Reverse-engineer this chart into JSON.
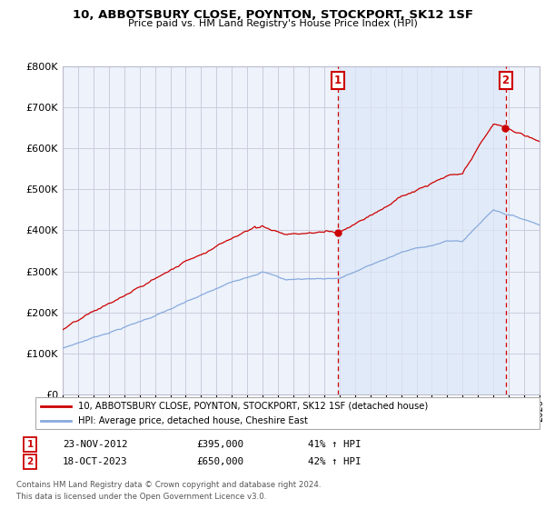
{
  "title": "10, ABBOTSBURY CLOSE, POYNTON, STOCKPORT, SK12 1SF",
  "subtitle": "Price paid vs. HM Land Registry's House Price Index (HPI)",
  "ylim": [
    0,
    800000
  ],
  "yticks": [
    0,
    100000,
    200000,
    300000,
    400000,
    500000,
    600000,
    700000,
    800000
  ],
  "xlim_start": 1995.0,
  "xlim_end": 2026.0,
  "sale1_year": 2012.9,
  "sale1_price": 395000,
  "sale2_year": 2023.79,
  "sale2_price": 650000,
  "red_line_color": "#cc0000",
  "blue_line_color": "#88aadd",
  "shade_color": "#dde8f8",
  "grid_color": "#ccccdd",
  "bg_color": "#edf2fb",
  "legend_label_red": "10, ABBOTSBURY CLOSE, POYNTON, STOCKPORT, SK12 1SF (detached house)",
  "legend_label_blue": "HPI: Average price, detached house, Cheshire East",
  "footnote1": "Contains HM Land Registry data © Crown copyright and database right 2024.",
  "footnote2": "This data is licensed under the Open Government Licence v3.0.",
  "table_row1": [
    "1",
    "23-NOV-2012",
    "£395,000",
    "41% ↑ HPI"
  ],
  "table_row2": [
    "2",
    "18-OCT-2023",
    "£650,000",
    "42% ↑ HPI"
  ]
}
